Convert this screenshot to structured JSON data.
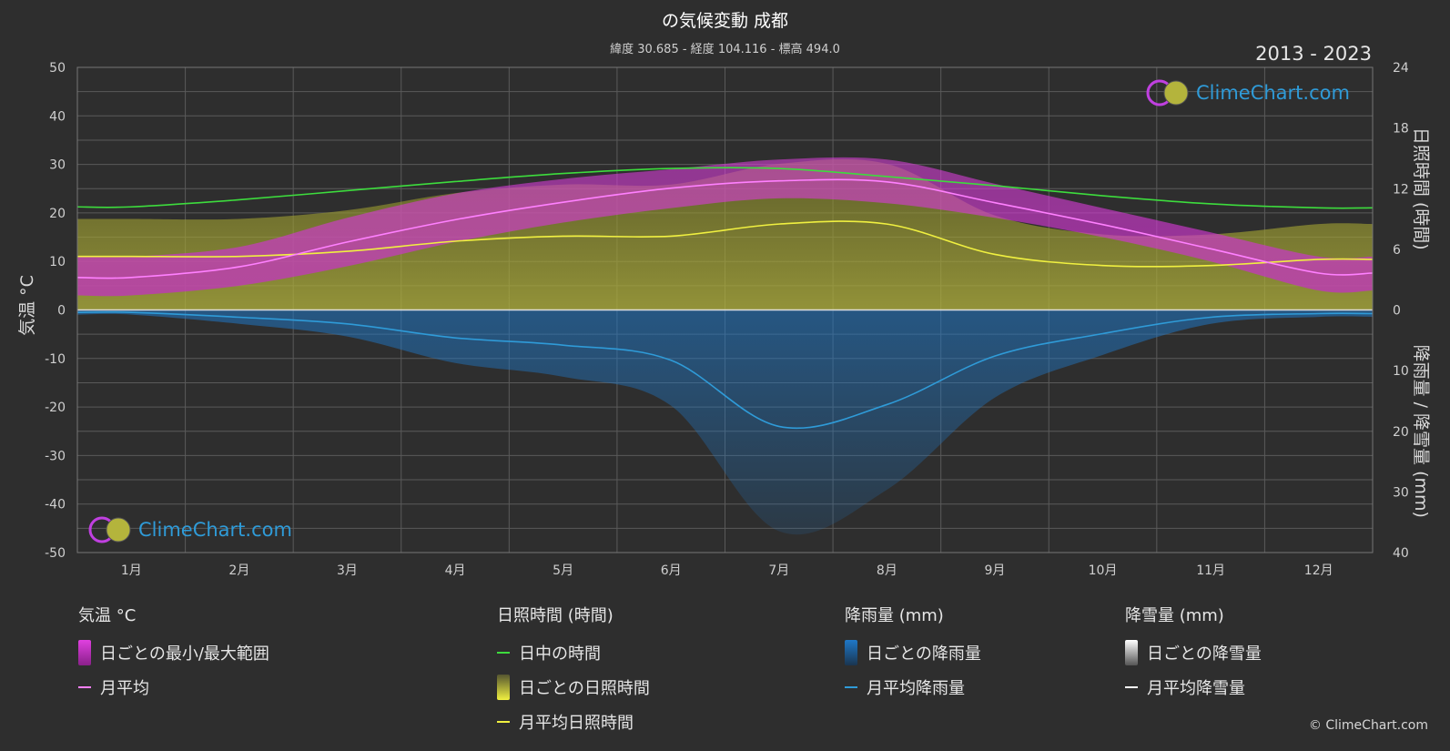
{
  "header": {
    "title": "の気候変動 成都",
    "subtitle": "緯度 30.685 - 経度 104.116 - 標高 494.0",
    "year_range": "2013 - 2023"
  },
  "logo_text": "ClimeChart.com",
  "copyright": "© ClimeChart.com",
  "legend": {
    "temp": {
      "title": "気温 °C",
      "range_label": "日ごとの最小/最大範囲",
      "avg_label": "月平均"
    },
    "sun": {
      "title": "日照時間 (時間)",
      "daylight_label": "日中の時間",
      "daily_label": "日ごとの日照時間",
      "avg_label": "月平均日照時間"
    },
    "rain": {
      "title": "降雨量 (mm)",
      "daily_label": "日ごとの降雨量",
      "avg_label": "月平均降雨量"
    },
    "snow": {
      "title": "降雪量 (mm)",
      "daily_label": "日ごとの降雪量",
      "avg_label": "月平均降雪量"
    }
  },
  "colors": {
    "background": "#2e2e2e",
    "temp_range": "#e040e0",
    "temp_avg": "#ff80ff",
    "daylight": "#3ddc3d",
    "sunshine": "#c8c832",
    "sunshine_avg": "#f0f040",
    "rain": "#1f78c8",
    "rain_avg": "#2f9bd8",
    "snow": "#ffffff"
  },
  "chart_data": {
    "type": "line",
    "categories": [
      "1月",
      "2月",
      "3月",
      "4月",
      "5月",
      "6月",
      "7月",
      "8月",
      "9月",
      "10月",
      "11月",
      "12月"
    ],
    "axes": {
      "left": {
        "label": "気温 °C",
        "range": [
          -50,
          50
        ],
        "ticks": [
          50,
          40,
          30,
          20,
          10,
          0,
          -10,
          -20,
          -30,
          -40,
          -50
        ]
      },
      "right_top": {
        "label": "日照時間 (時間)",
        "range": [
          0,
          24
        ],
        "ticks": [
          24,
          18,
          12,
          6,
          0
        ]
      },
      "right_bottom": {
        "label": "降雨量 / 降雪量 (mm)",
        "range": [
          0,
          40
        ],
        "ticks": [
          10,
          20,
          30,
          40
        ]
      }
    },
    "grid": true,
    "series": [
      {
        "name": "月平均",
        "axis": "left",
        "values": [
          6.7,
          8.9,
          14.0,
          18.6,
          22.2,
          25.1,
          26.6,
          26.4,
          22.1,
          17.6,
          12.6,
          7.6
        ]
      },
      {
        "name": "日ごとの最小/最大範囲",
        "axis": "left",
        "min": [
          3,
          5,
          9,
          14,
          18,
          21,
          23,
          22,
          19,
          15,
          10,
          4
        ],
        "max": [
          11,
          13,
          19,
          24,
          27,
          29,
          31,
          31,
          26,
          21,
          16,
          11
        ]
      },
      {
        "name": "日中の時間",
        "axis": "right_top",
        "values": [
          10.2,
          10.9,
          11.8,
          12.7,
          13.5,
          14.0,
          14.0,
          13.2,
          12.3,
          11.3,
          10.5,
          10.1
        ]
      },
      {
        "name": "月平均日照時間",
        "axis": "right_top",
        "values": [
          5.3,
          5.3,
          5.8,
          6.8,
          7.3,
          7.3,
          8.5,
          8.5,
          5.5,
          4.4,
          4.4,
          5.0
        ]
      },
      {
        "name": "月平均降雨量",
        "axis": "right_bottom",
        "values": [
          0.4,
          1.2,
          2.3,
          4.6,
          5.8,
          8.3,
          19.2,
          15.6,
          7.6,
          3.9,
          1.2,
          0.6
        ]
      },
      {
        "name": "月平均降雪量",
        "axis": "right_bottom",
        "values": [
          0,
          0,
          0,
          0,
          0,
          0,
          0,
          0,
          0,
          0,
          0,
          0
        ]
      }
    ]
  }
}
